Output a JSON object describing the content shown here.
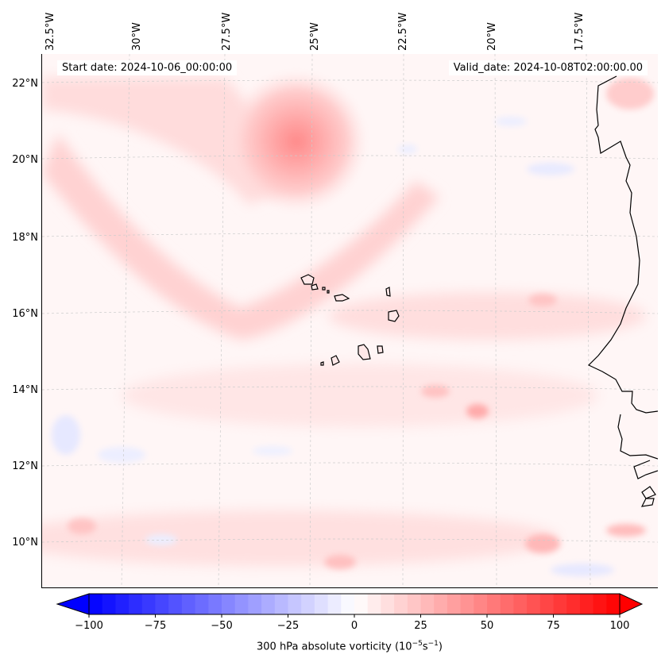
{
  "map": {
    "start_date": "Start date: 2024-10-06_00:00:00",
    "valid_date": "Valid_date: 2024-10-08T02:00:00.00",
    "longitude_labels": [
      "32.5°W",
      "30°W",
      "27.5°W",
      "25°W",
      "22.5°W",
      "20°W",
      "17.5°W"
    ],
    "latitude_labels": [
      "22°N",
      "20°N",
      "18°N",
      "16°N",
      "14°N",
      "12°N",
      "10°N"
    ],
    "field": "300 hPa absolute vorticity"
  },
  "colorbar": {
    "ticks": [
      "−100",
      "−75",
      "−50",
      "−25",
      "0",
      "25",
      "50",
      "75",
      "100"
    ],
    "label_main": "300 hPa absolute vorticity (10",
    "label_exp1": "−5",
    "label_mid": "s",
    "label_exp2": "−1",
    "label_end": ")",
    "min": -100,
    "max": 100,
    "negative_color": "#0000ff",
    "positive_color": "#ff0000"
  }
}
